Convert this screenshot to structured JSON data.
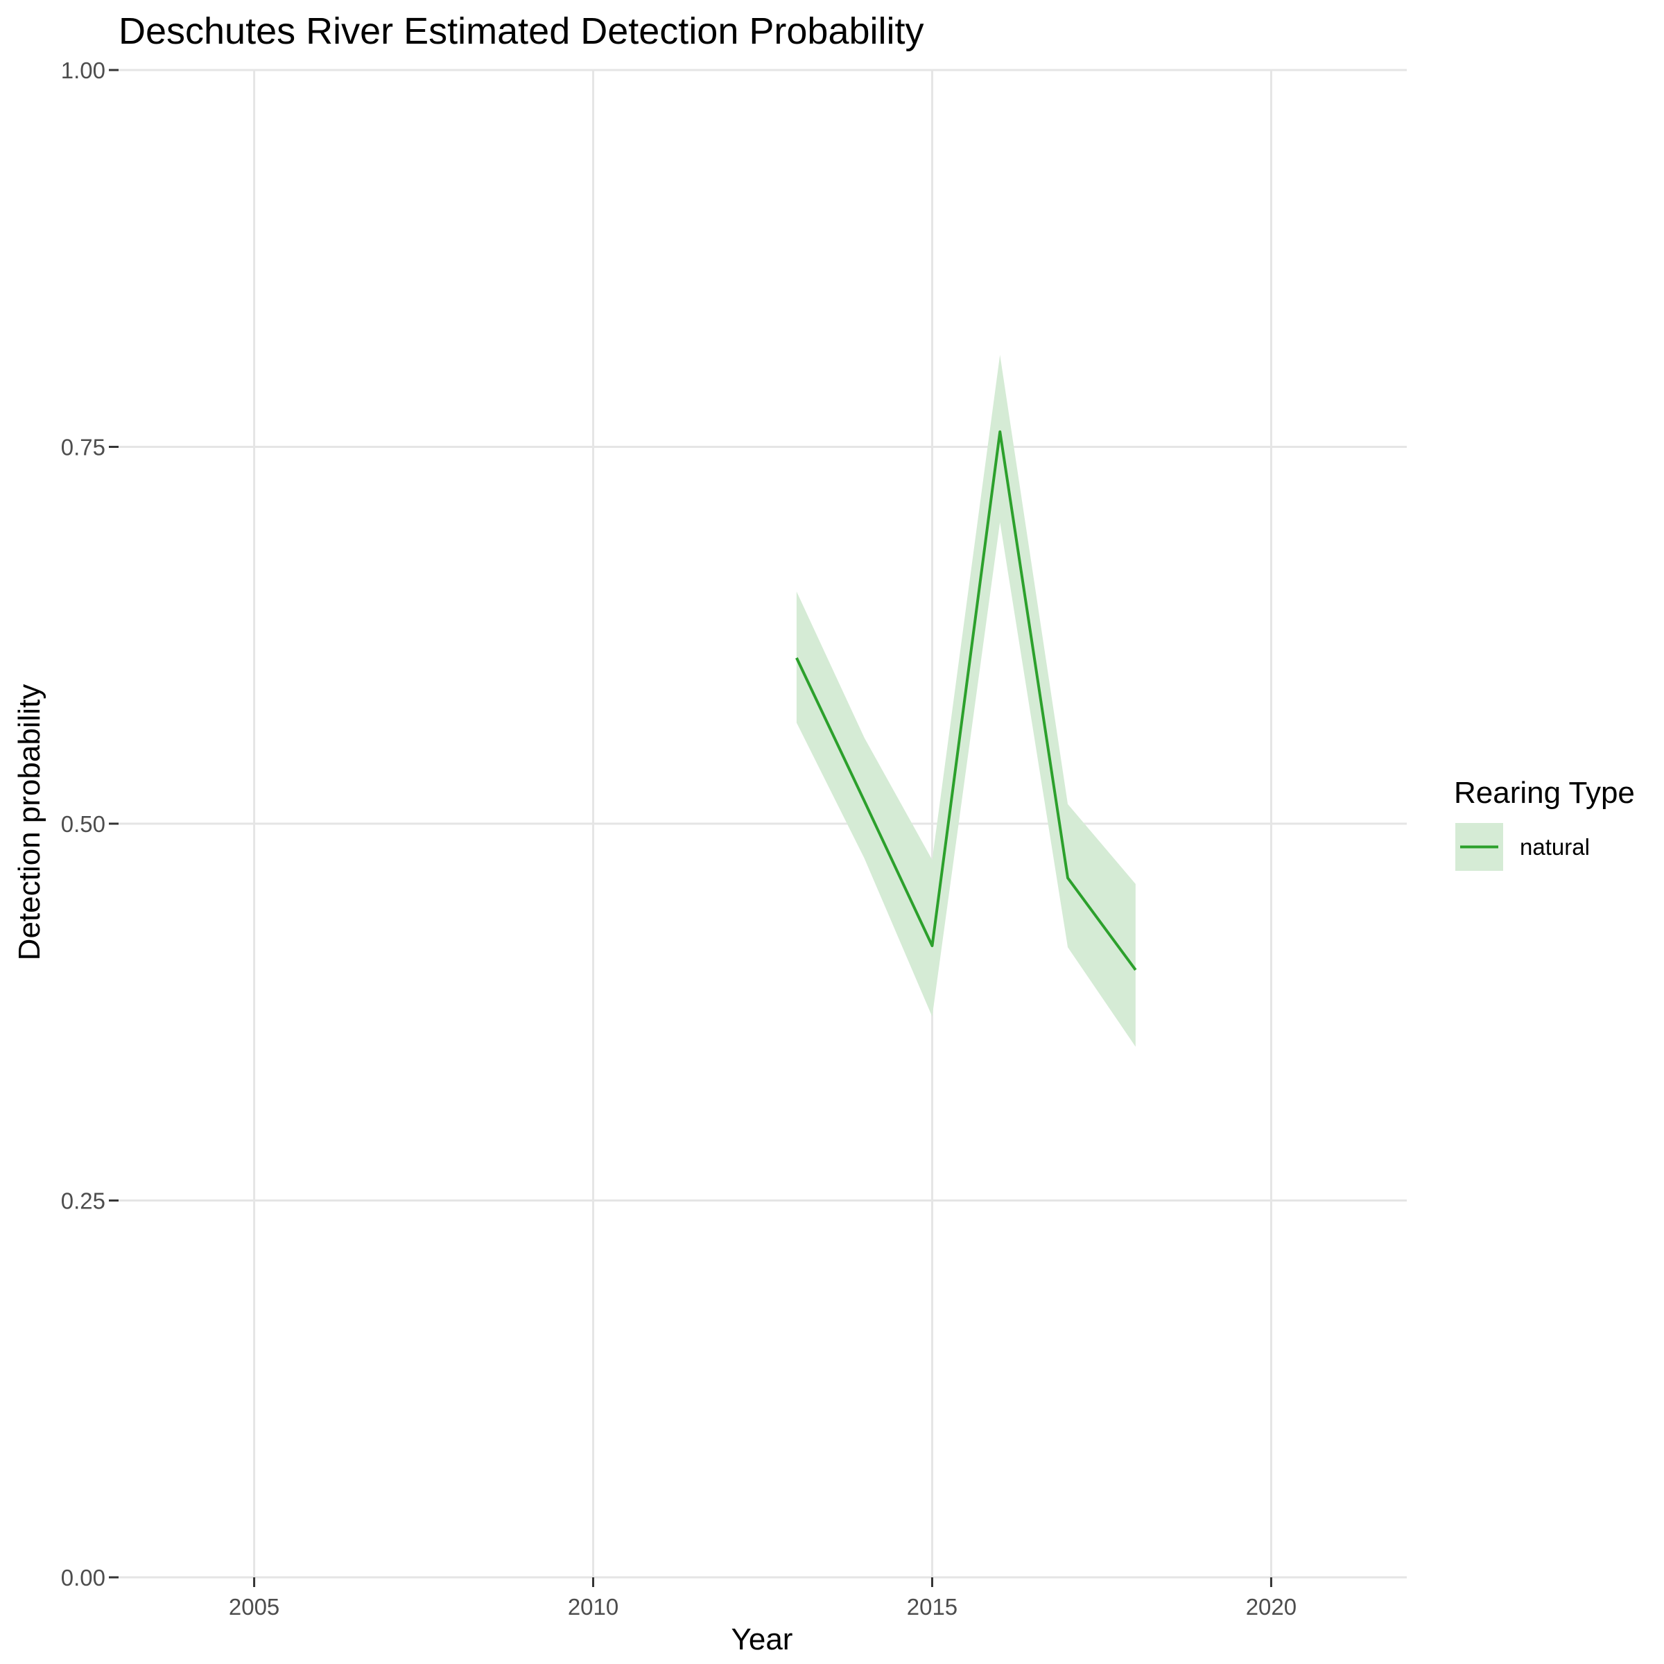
{
  "chart_data": {
    "type": "line",
    "title": "Deschutes River Estimated Detection Probability",
    "xlabel": "Year",
    "ylabel": "Detection probability",
    "xlim": [
      2003,
      2022
    ],
    "ylim": [
      0,
      1
    ],
    "x_ticks": [
      2005,
      2010,
      2015,
      2020
    ],
    "x_tick_labels": [
      "2005",
      "2010",
      "2015",
      "2020"
    ],
    "y_ticks": [
      0,
      0.25,
      0.5,
      0.75,
      1
    ],
    "y_tick_labels": [
      "0.00",
      "0.25",
      "0.50",
      "0.75",
      "1.00"
    ],
    "grid": true,
    "legend": {
      "title": "Rearing Type",
      "position": "right"
    },
    "series": [
      {
        "name": "natural",
        "color": "#2ca02c",
        "ribbon_color": "#d5ebd5",
        "x": [
          2013,
          2014,
          2015,
          2016,
          2017,
          2018
        ],
        "y": [
          0.61,
          0.515,
          0.419,
          0.76,
          0.464,
          0.403
        ],
        "lower": [
          0.567,
          0.477,
          0.372,
          0.7,
          0.418,
          0.352
        ],
        "upper": [
          0.654,
          0.557,
          0.476,
          0.811,
          0.513,
          0.46
        ]
      }
    ]
  }
}
